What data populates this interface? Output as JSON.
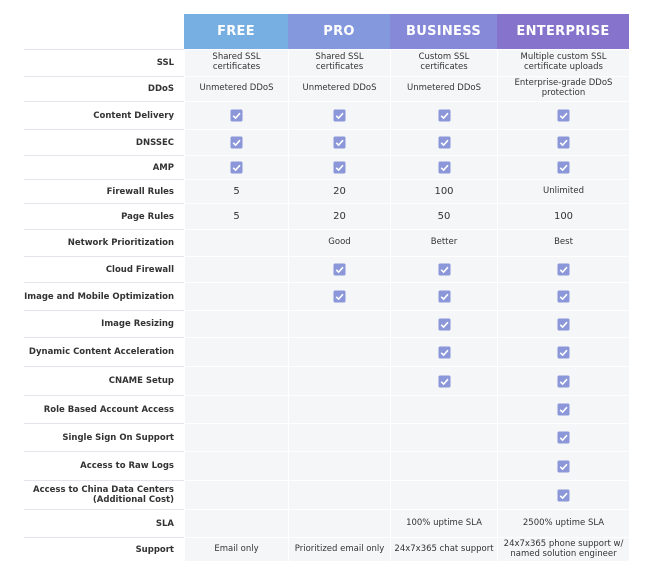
{
  "columns": [
    "FREE",
    "PRO",
    "BUSINESS",
    "ENTERPRISE"
  ],
  "rows": [
    {
      "label": "SSL",
      "cells": [
        "Shared SSL certificates",
        "Shared SSL certificates",
        "Custom SSL certificates",
        "Multiple custom SSL certificate uploads"
      ]
    },
    {
      "label": "DDoS",
      "cells": [
        "Unmetered DDoS",
        "Unmetered DDoS",
        "Unmetered DDoS",
        "Enterprise-grade DDoS protection"
      ]
    },
    {
      "label": "Content Delivery",
      "cells": [
        true,
        true,
        true,
        true
      ]
    },
    {
      "label": "DNSSEC",
      "cells": [
        true,
        true,
        true,
        true
      ]
    },
    {
      "label": "AMP",
      "cells": [
        true,
        true,
        true,
        true
      ]
    },
    {
      "label": "Firewall Rules",
      "cells": [
        "5",
        "20",
        "100",
        "Unlimited"
      ]
    },
    {
      "label": "Page Rules",
      "cells": [
        "5",
        "20",
        "50",
        "100"
      ]
    },
    {
      "label": "Network Prioritization",
      "cells": [
        null,
        "Good",
        "Better",
        "Best"
      ]
    },
    {
      "label": "Cloud Firewall",
      "cells": [
        null,
        true,
        true,
        true
      ]
    },
    {
      "label": "Image and Mobile Optimization",
      "cells": [
        null,
        true,
        true,
        true
      ]
    },
    {
      "label": "Image Resizing",
      "cells": [
        null,
        null,
        true,
        true
      ]
    },
    {
      "label": "Dynamic Content Acceleration",
      "cells": [
        null,
        null,
        true,
        true
      ]
    },
    {
      "label": "CNAME Setup",
      "cells": [
        null,
        null,
        true,
        true
      ]
    },
    {
      "label": "Role Based Account Access",
      "cells": [
        null,
        null,
        null,
        true
      ]
    },
    {
      "label": "Single Sign On Support",
      "cells": [
        null,
        null,
        null,
        true
      ]
    },
    {
      "label": "Access to Raw Logs",
      "cells": [
        null,
        null,
        null,
        true
      ]
    },
    {
      "label": "Access to China Data Centers (Additional Cost)",
      "cells": [
        null,
        null,
        null,
        true
      ]
    },
    {
      "label": "SLA",
      "cells": [
        null,
        null,
        "100% uptime SLA",
        "2500% uptime SLA"
      ]
    },
    {
      "label": "Support",
      "cells": [
        "Email only",
        "Prioritized email only",
        "24x7x365 chat support",
        "24x7x365 phone support w/ named solution engineer"
      ]
    }
  ]
}
